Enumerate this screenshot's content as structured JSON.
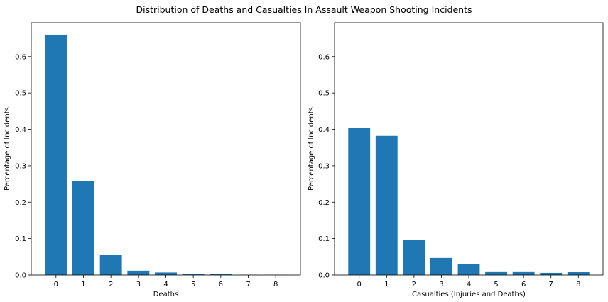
{
  "title": "Distribution of Deaths and Casualties In Assault Weapon Shooting Incidents",
  "chart_data": [
    {
      "type": "bar",
      "categories": [
        "0",
        "1",
        "2",
        "3",
        "4",
        "5",
        "6",
        "7",
        "8"
      ],
      "values": [
        0.66,
        0.257,
        0.056,
        0.012,
        0.007,
        0.003,
        0.002,
        0.0005,
        0.0005
      ],
      "xlabel": "Deaths",
      "ylabel": "Percentage of Incidents",
      "ylim": [
        0,
        0.693
      ],
      "yticks": [
        "0.0",
        "0.1",
        "0.2",
        "0.3",
        "0.4",
        "0.5",
        "0.6"
      ],
      "color": "#1f77b4",
      "grid": false
    },
    {
      "type": "bar",
      "categories": [
        "0",
        "1",
        "2",
        "3",
        "4",
        "5",
        "6",
        "7",
        "8"
      ],
      "values": [
        0.403,
        0.382,
        0.097,
        0.047,
        0.03,
        0.01,
        0.01,
        0.006,
        0.008
      ],
      "xlabel": "Casualties (Injuries and Deaths)",
      "ylabel": "Percentage of Incidents",
      "ylim": [
        0,
        0.693
      ],
      "yticks": [
        "0.0",
        "0.1",
        "0.2",
        "0.3",
        "0.4",
        "0.5",
        "0.6"
      ],
      "color": "#1f77b4",
      "grid": false
    }
  ]
}
